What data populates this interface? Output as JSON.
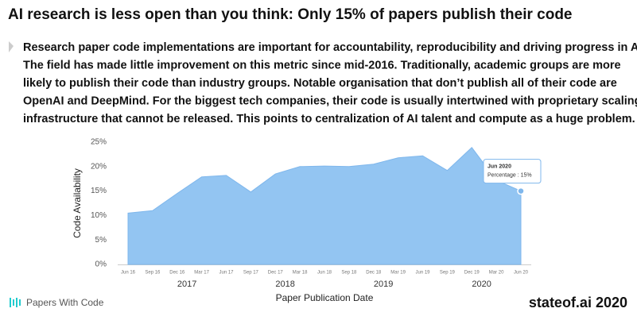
{
  "header": {
    "title": "AI research is less open than you think: Only 15% of papers publish their code",
    "body_lines": [
      "Research paper code implementations are important for accountability, reproducibility and driving progress in AI.",
      "The field has made little improvement on this metric since mid-2016. Traditionally, academic groups are more",
      "likely to publish their code than industry groups. Notable organisation that don’t publish all of their code are",
      "OpenAI and DeepMind. For the biggest tech companies, their code is usually intertwined with proprietary scaling",
      "infrastructure that cannot be released. This points to centralization of AI talent and compute as a huge problem."
    ]
  },
  "chart_data": {
    "type": "area",
    "categories": [
      "Jun 16",
      "Sep 16",
      "Dec 16",
      "Mar 17",
      "Jun 17",
      "Sep 17",
      "Dec 17",
      "Mar 18",
      "Jun 18",
      "Sep 18",
      "Dec 18",
      "Mar 19",
      "Jun 19",
      "Sep 19",
      "Dec 19",
      "Mar 20",
      "Jun 20"
    ],
    "values": [
      10.5,
      11,
      14.5,
      17.9,
      18.2,
      14.8,
      18.5,
      20,
      20.1,
      20,
      20.5,
      21.8,
      22.2,
      19.2,
      23.9,
      17.2,
      15
    ],
    "color": "#93c5f2",
    "year_labels": [
      "2017",
      "2018",
      "2019",
      "2020"
    ],
    "x_label": "Paper Publication Date",
    "y_label": "Code Availability",
    "ylim": [
      0,
      25
    ],
    "yticks": [
      {
        "value": 0,
        "label": "0%"
      },
      {
        "value": 5,
        "label": "5%"
      },
      {
        "value": 10,
        "label": "10%"
      },
      {
        "value": 15,
        "label": "15%"
      },
      {
        "value": 20,
        "label": "20%"
      },
      {
        "value": 25,
        "label": "25%"
      }
    ],
    "grid": false,
    "tooltip": {
      "title": "Jun 2020",
      "text": "Percentage : 15%"
    }
  },
  "footer": {
    "source": "Papers With Code",
    "brand": "stateof.ai 2020"
  }
}
